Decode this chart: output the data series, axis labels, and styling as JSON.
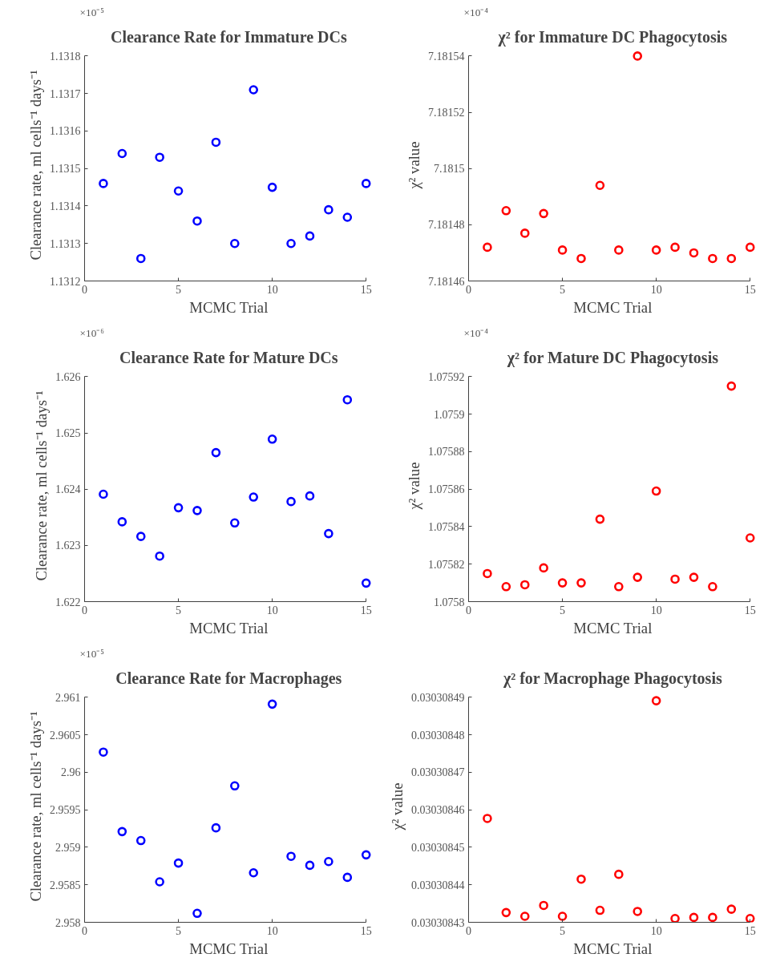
{
  "chart_data": [
    {
      "type": "scatter",
      "title": "Clearance Rate for Immature DCs",
      "xlabel": "MCMC Trial",
      "ylabel": "Clearance rate, ml cells⁻¹ days⁻¹",
      "annotations": [
        "×10⁻⁵"
      ],
      "marker": "circle",
      "x": [
        1,
        2,
        3,
        4,
        5,
        6,
        7,
        8,
        9,
        10,
        11,
        12,
        13,
        14,
        15
      ],
      "xlim": [
        0,
        15
      ],
      "xticks": [
        0,
        5,
        10,
        15
      ],
      "ylim": [
        1.1312,
        1.1318
      ],
      "yticks": [
        1.1312,
        1.1313,
        1.1314,
        1.1315,
        1.1316,
        1.1317,
        1.1318
      ],
      "series": [
        {
          "color": "#0000ff",
          "values": [
            1.13146,
            1.13154,
            1.13126,
            1.13153,
            1.13144,
            1.13136,
            1.13157,
            1.1313,
            1.13171,
            1.13145,
            1.1313,
            1.13132,
            1.13139,
            1.13137,
            1.13146
          ]
        }
      ]
    },
    {
      "type": "scatter",
      "title": "χ² for Immature DC Phagocytosis",
      "xlabel": "MCMC Trial",
      "ylabel": "χ² value",
      "annotations": [
        "×10⁻⁴"
      ],
      "marker": "circle",
      "x": [
        1,
        2,
        3,
        4,
        5,
        6,
        7,
        8,
        9,
        10,
        11,
        12,
        13,
        14,
        15
      ],
      "xlim": [
        0,
        15
      ],
      "xticks": [
        0,
        5,
        10,
        15
      ],
      "ylim": [
        7.18146,
        7.18154
      ],
      "yticks": [
        7.18146,
        7.18148,
        7.1815,
        7.18152,
        7.18154
      ],
      "series": [
        {
          "color": "#ff0000",
          "values": [
            7.181472,
            7.181485,
            7.181477,
            7.181484,
            7.181471,
            7.181468,
            7.181494,
            7.181471,
            7.18154,
            7.181471,
            7.181472,
            7.18147,
            7.181468,
            7.181468,
            7.181472
          ]
        }
      ]
    },
    {
      "type": "scatter",
      "title": "Clearance Rate for Mature DCs",
      "xlabel": "MCMC Trial",
      "ylabel": "Clearance rate, ml cells⁻¹ days⁻¹",
      "annotations": [
        "×10⁻⁶"
      ],
      "marker": "circle",
      "x": [
        1,
        2,
        3,
        4,
        5,
        6,
        7,
        8,
        9,
        10,
        11,
        12,
        13,
        14,
        15
      ],
      "xlim": [
        0,
        15
      ],
      "xticks": [
        0,
        5,
        10,
        15
      ],
      "ylim": [
        1.622,
        1.626
      ],
      "yticks": [
        1.622,
        1.623,
        1.624,
        1.625,
        1.626
      ],
      "series": [
        {
          "color": "#0000ff",
          "values": [
            1.62391,
            1.62342,
            1.62316,
            1.62281,
            1.62367,
            1.62362,
            1.62465,
            1.6234,
            1.62386,
            1.62489,
            1.62378,
            1.62388,
            1.62321,
            1.62559,
            1.62233
          ]
        }
      ]
    },
    {
      "type": "scatter",
      "title": "χ² for Mature DC Phagocytosis",
      "xlabel": "MCMC Trial",
      "ylabel": "χ² value",
      "annotations": [
        "×10⁻⁴"
      ],
      "marker": "circle",
      "x": [
        1,
        2,
        3,
        4,
        5,
        6,
        7,
        8,
        9,
        10,
        11,
        12,
        13,
        14,
        15
      ],
      "xlim": [
        0,
        15
      ],
      "xticks": [
        0,
        5,
        10,
        15
      ],
      "ylim": [
        1.0758,
        1.07592
      ],
      "yticks": [
        1.0758,
        1.07582,
        1.07584,
        1.07586,
        1.07588,
        1.0759,
        1.07592
      ],
      "series": [
        {
          "color": "#ff0000",
          "values": [
            1.075815,
            1.075808,
            1.075809,
            1.075818,
            1.07581,
            1.07581,
            1.075844,
            1.075808,
            1.075813,
            1.075859,
            1.075812,
            1.075813,
            1.075808,
            1.075915,
            1.075834
          ]
        }
      ]
    },
    {
      "type": "scatter",
      "title": "Clearance Rate for Macrophages",
      "xlabel": "MCMC Trial",
      "ylabel": "Clearance rate, ml cells⁻¹ days⁻¹",
      "annotations": [
        "×10⁻⁵"
      ],
      "marker": "circle",
      "x": [
        1,
        2,
        3,
        4,
        5,
        6,
        7,
        8,
        9,
        10,
        11,
        12,
        13,
        14,
        15
      ],
      "xlim": [
        0,
        15
      ],
      "xticks": [
        0,
        5,
        10,
        15
      ],
      "ylim": [
        2.958,
        2.961
      ],
      "yticks": [
        2.958,
        2.9585,
        2.959,
        2.9595,
        2.96,
        2.9605,
        2.961
      ],
      "series": [
        {
          "color": "#0000ff",
          "values": [
            2.96027,
            2.95921,
            2.95909,
            2.95854,
            2.95879,
            2.95812,
            2.95926,
            2.95982,
            2.95866,
            2.96091,
            2.95888,
            2.95876,
            2.95881,
            2.9586,
            2.9589
          ]
        }
      ]
    },
    {
      "type": "scatter",
      "title": "χ² for Macrophage Phagocytosis",
      "xlabel": "MCMC Trial",
      "ylabel": "χ² value",
      "marker": "circle",
      "x": [
        1,
        2,
        3,
        4,
        5,
        6,
        7,
        8,
        9,
        10,
        11,
        12,
        13,
        14,
        15
      ],
      "xlim": [
        0,
        15
      ],
      "xticks": [
        0,
        5,
        10,
        15
      ],
      "ylim": [
        0.03030843,
        0.03030849
      ],
      "yticks": [
        0.03030843,
        0.03030844,
        0.03030845,
        0.03030846,
        0.03030847,
        0.03030848,
        0.03030849
      ],
      "series": [
        {
          "color": "#ff0000",
          "values": [
            0.0303084577,
            0.0303084326,
            0.0303084316,
            0.0303084345,
            0.0303084316,
            0.0303084415,
            0.0303084332,
            0.0303084428,
            0.0303084329,
            0.0303084891,
            0.030308431,
            0.0303084313,
            0.0303084313,
            0.0303084335,
            0.030308431
          ]
        }
      ]
    }
  ]
}
